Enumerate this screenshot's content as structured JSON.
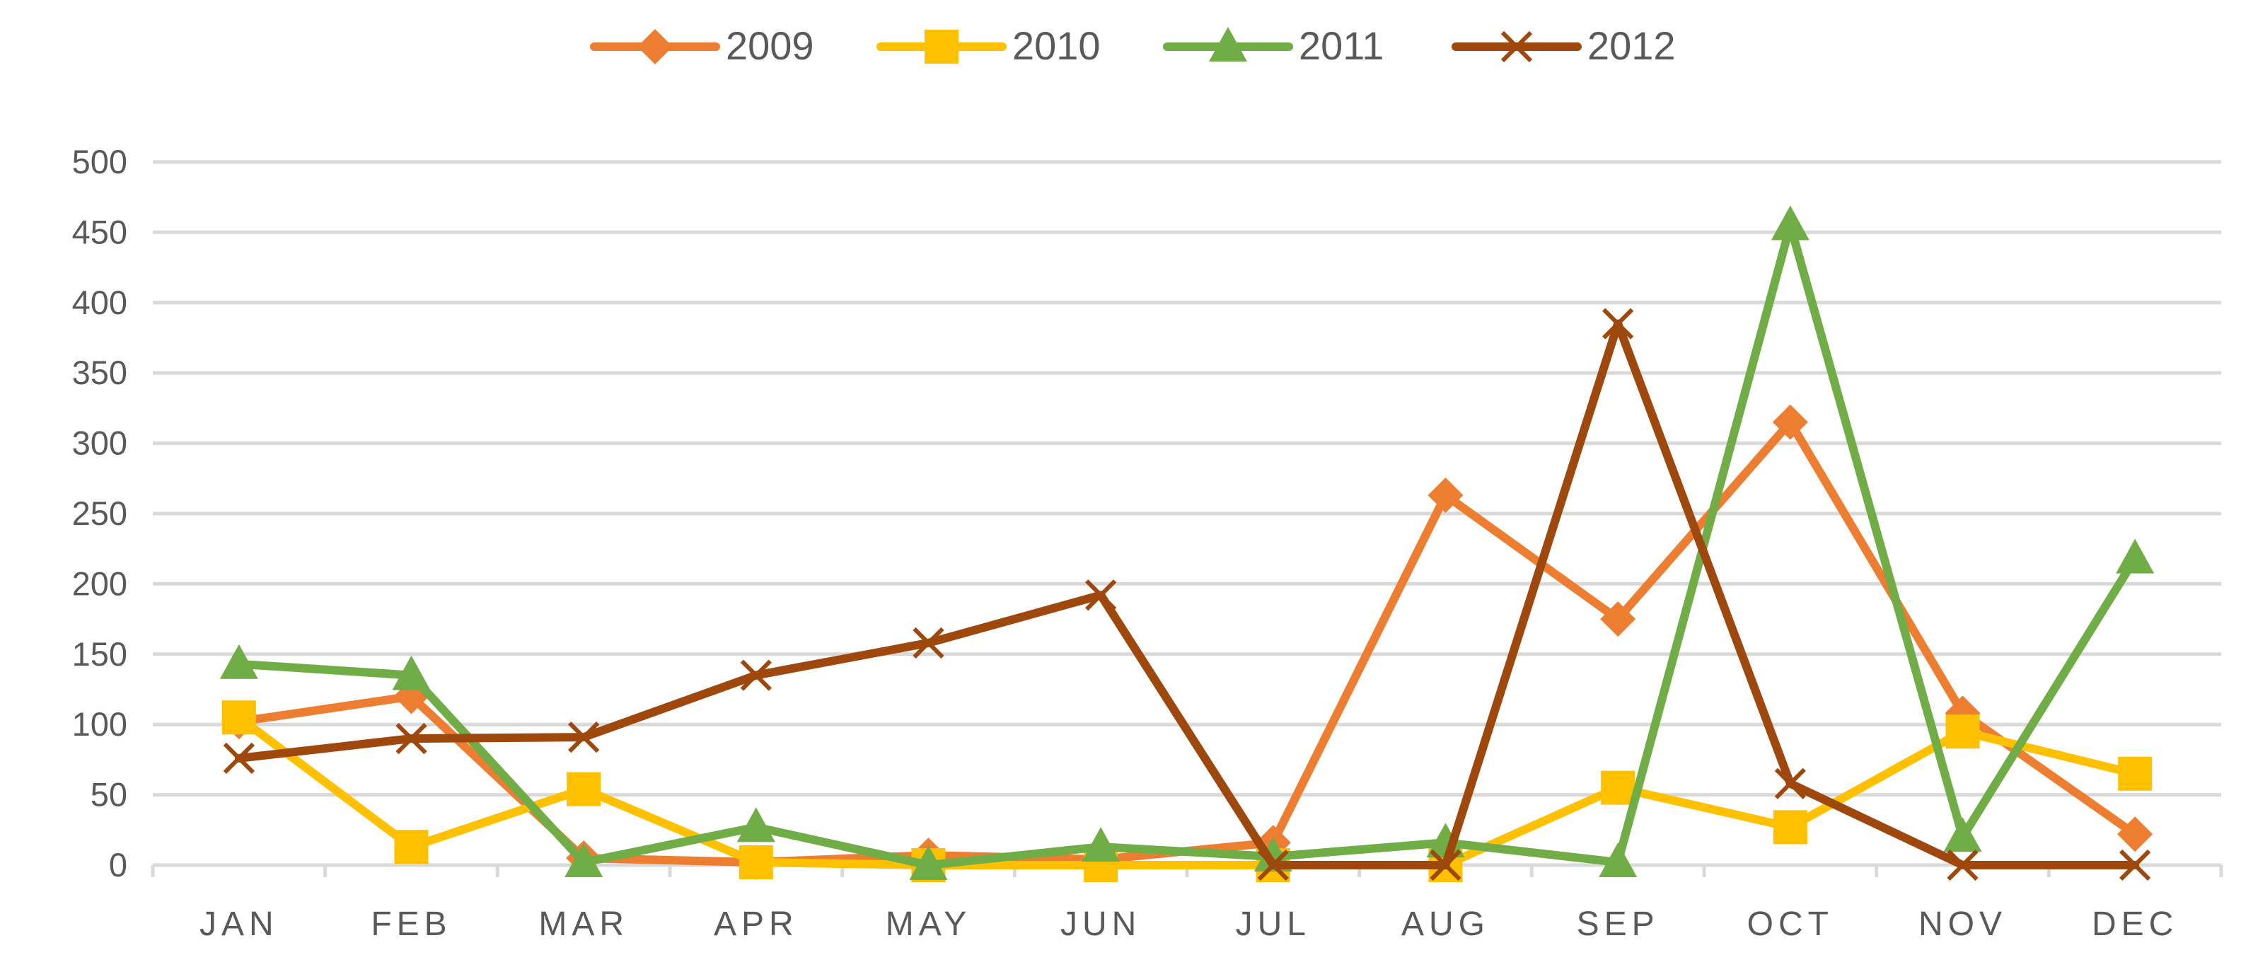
{
  "chart_data": {
    "type": "line",
    "categories": [
      "JAN",
      "FEB",
      "MAR",
      "APR",
      "MAY",
      "JUN",
      "JUL",
      "AUG",
      "SEP",
      "OCT",
      "NOV",
      "DEC"
    ],
    "yticks": [
      "0",
      "50",
      "100",
      "150",
      "200",
      "250",
      "300",
      "350",
      "400",
      "450",
      "500"
    ],
    "ylim": [
      0,
      500
    ],
    "grid": true,
    "legend_position": "top",
    "series": [
      {
        "name": "2009",
        "color": "#ED7D31",
        "marker": "diamond",
        "values": [
          102,
          120,
          5,
          2,
          7,
          4,
          16,
          263,
          175,
          315,
          108,
          22
        ]
      },
      {
        "name": "2010",
        "color": "#FFC000",
        "marker": "square",
        "values": [
          105,
          13,
          54,
          2,
          0,
          0,
          0,
          0,
          55,
          27,
          95,
          65
        ]
      },
      {
        "name": "2011",
        "color": "#70AD47",
        "marker": "triangle",
        "values": [
          143,
          135,
          2,
          27,
          0,
          13,
          6,
          16,
          2,
          455,
          20,
          218
        ]
      },
      {
        "name": "2012",
        "color": "#9E480E",
        "marker": "x",
        "values": [
          76,
          90,
          91,
          135,
          158,
          192,
          0,
          0,
          385,
          58,
          0,
          0
        ]
      }
    ]
  }
}
